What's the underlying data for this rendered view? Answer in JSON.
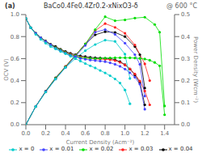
{
  "chart_data": {
    "type": "line",
    "xlabel": "Current Density (Acm⁻²)",
    "ylabel": "OCV (V)",
    "y2label": "Power Density (Wcm⁻²)",
    "annotations": [
      "(a)",
      "BaCo0.4Fe0.4Zr0.2-xNixO3-δ",
      "@ 600 °C"
    ],
    "xlim": [
      0,
      1.5
    ],
    "xticks": [
      {
        "value": 0,
        "label": "0.0"
      },
      0.2,
      0.4,
      0.6,
      0.8,
      {
        "value": 1,
        "label": "1.0"
      },
      1.2,
      1.4
    ],
    "ylim": [
      0,
      1
    ],
    "yticks": [
      {
        "value": 0,
        "label": "0.0"
      },
      0.2,
      0.4,
      0.6,
      0.8,
      {
        "value": 1,
        "label": "1.0"
      }
    ],
    "y2lim": [
      0,
      0.5
    ],
    "y2ticks": [
      {
        "value": 0,
        "label": "0.0"
      },
      0.1,
      0.2,
      0.3,
      0.4,
      0.5
    ],
    "grid": false,
    "legend": "bottom",
    "series": [
      {
        "name": "x = 0.04",
        "color": "#000000",
        "marker": "circle",
        "x": [
          0.0,
          0.05,
          0.1,
          0.15,
          0.2,
          0.25,
          0.3,
          0.35,
          0.4,
          0.45,
          0.5,
          0.55,
          0.6,
          0.65,
          0.7,
          0.75,
          0.8,
          0.85,
          0.9,
          0.95,
          1.0,
          1.05,
          1.1,
          1.15,
          1.2
        ],
        "values": [
          0.965,
          0.88,
          0.83,
          0.79,
          0.76,
          0.73,
          0.71,
          0.685,
          0.665,
          0.648,
          0.635,
          0.625,
          0.618,
          0.612,
          0.608,
          0.605,
          0.603,
          0.6,
          0.59,
          0.572,
          0.545,
          0.505,
          0.452,
          0.382,
          0.18
        ]
      },
      {
        "color": "#000000",
        "marker": "circle",
        "axis": "y2",
        "x": [
          0.0,
          0.1,
          0.2,
          0.3,
          0.4,
          0.5,
          0.6,
          0.7,
          0.8,
          0.9,
          1.0,
          1.1,
          1.15,
          1.2
        ],
        "values": [
          0.0,
          0.083,
          0.152,
          0.213,
          0.264,
          0.315,
          0.366,
          0.408,
          0.422,
          0.419,
          0.4,
          0.355,
          0.318,
          0.166
        ]
      },
      {
        "name": "x = 0.03",
        "color": "#ff2222",
        "marker": "circle",
        "x": [
          0.0,
          0.05,
          0.1,
          0.15,
          0.2,
          0.25,
          0.3,
          0.35,
          0.4,
          0.45,
          0.5,
          0.55,
          0.6,
          0.65,
          0.7,
          0.75,
          0.8,
          0.85,
          0.9,
          0.95,
          1.0,
          1.05,
          1.1,
          1.15,
          1.2,
          1.25
        ],
        "values": [
          0.965,
          0.88,
          0.83,
          0.79,
          0.755,
          0.725,
          0.7,
          0.678,
          0.658,
          0.64,
          0.625,
          0.615,
          0.607,
          0.601,
          0.597,
          0.595,
          0.593,
          0.59,
          0.582,
          0.566,
          0.542,
          0.506,
          0.46,
          0.396,
          0.306,
          0.18
        ]
      },
      {
        "color": "#ff2222",
        "marker": "circle",
        "axis": "y2",
        "x": [
          0.0,
          0.1,
          0.2,
          0.3,
          0.4,
          0.5,
          0.6,
          0.7,
          0.8,
          0.9,
          1.0,
          1.1,
          1.2,
          1.25
        ],
        "values": [
          0.0,
          0.083,
          0.15,
          0.21,
          0.264,
          0.315,
          0.366,
          0.427,
          0.459,
          0.442,
          0.415,
          0.362,
          0.276,
          0.2
        ]
      },
      {
        "name": "x = 0.02",
        "color": "#00dd00",
        "marker": "circle",
        "x": [
          0.0,
          0.05,
          0.1,
          0.15,
          0.2,
          0.25,
          0.3,
          0.35,
          0.4,
          0.45,
          0.5,
          0.55,
          0.6,
          0.65,
          0.7,
          0.75,
          0.8,
          0.85,
          0.9,
          0.95,
          1.0,
          1.05,
          1.1,
          1.15,
          1.2,
          1.25,
          1.3,
          1.35,
          1.4
        ],
        "values": [
          0.965,
          0.88,
          0.83,
          0.79,
          0.755,
          0.725,
          0.7,
          0.678,
          0.655,
          0.635,
          0.62,
          0.61,
          0.605,
          0.602,
          0.6,
          0.602,
          0.604,
          0.606,
          0.607,
          0.608,
          0.608,
          0.607,
          0.605,
          0.602,
          0.596,
          0.585,
          0.565,
          0.535,
          0.09
        ]
      },
      {
        "color": "#00dd00",
        "marker": "circle",
        "axis": "y2",
        "x": [
          0.0,
          0.1,
          0.2,
          0.3,
          0.4,
          0.5,
          0.6,
          0.7,
          0.8,
          0.9,
          1.0,
          1.1,
          1.2,
          1.3,
          1.35,
          1.4
        ],
        "values": [
          0.0,
          0.083,
          0.15,
          0.21,
          0.262,
          0.314,
          0.366,
          0.432,
          0.49,
          0.472,
          0.476,
          0.484,
          0.488,
          0.455,
          0.42,
          0.085
        ]
      },
      {
        "name": "x = 0.01",
        "color": "#4444ff",
        "marker": "circle",
        "x": [
          0.0,
          0.05,
          0.1,
          0.15,
          0.2,
          0.25,
          0.3,
          0.35,
          0.4,
          0.45,
          0.5,
          0.55,
          0.6,
          0.65,
          0.7,
          0.75,
          0.8,
          0.85,
          0.9,
          0.95,
          1.0,
          1.05,
          1.1,
          1.15,
          1.2
        ],
        "values": [
          0.965,
          0.88,
          0.83,
          0.79,
          0.755,
          0.725,
          0.695,
          0.672,
          0.65,
          0.63,
          0.615,
          0.602,
          0.594,
          0.587,
          0.582,
          0.578,
          0.572,
          0.562,
          0.548,
          0.53,
          0.505,
          0.472,
          0.43,
          0.368,
          0.14
        ]
      },
      {
        "color": "#4444ff",
        "marker": "circle",
        "axis": "y2",
        "x": [
          0.0,
          0.1,
          0.2,
          0.3,
          0.4,
          0.5,
          0.6,
          0.7,
          0.8,
          0.9,
          1.0,
          1.1,
          1.15,
          1.2
        ],
        "values": [
          0.0,
          0.083,
          0.15,
          0.207,
          0.26,
          0.31,
          0.36,
          0.42,
          0.432,
          0.41,
          0.37,
          0.318,
          0.274,
          0.13
        ]
      },
      {
        "name": "x = 0",
        "color": "#00cccc",
        "marker": "circle",
        "x": [
          0.0,
          0.05,
          0.1,
          0.15,
          0.2,
          0.25,
          0.3,
          0.35,
          0.4,
          0.45,
          0.5,
          0.55,
          0.6,
          0.65,
          0.7,
          0.75,
          0.8,
          0.85,
          0.9,
          0.95,
          1.0,
          1.05
        ],
        "values": [
          0.965,
          0.88,
          0.82,
          0.775,
          0.74,
          0.71,
          0.688,
          0.665,
          0.645,
          0.622,
          0.6,
          0.578,
          0.555,
          0.535,
          0.515,
          0.492,
          0.47,
          0.445,
          0.415,
          0.378,
          0.315,
          0.19
        ]
      },
      {
        "color": "#00cccc",
        "marker": "circle",
        "axis": "y2",
        "x": [
          0.0,
          0.1,
          0.2,
          0.3,
          0.4,
          0.5,
          0.6,
          0.7,
          0.8,
          0.9,
          1.0,
          1.05
        ],
        "values": [
          0.0,
          0.082,
          0.148,
          0.207,
          0.26,
          0.3,
          0.336,
          0.364,
          0.384,
          0.378,
          0.32,
          0.21
        ]
      }
    ]
  }
}
